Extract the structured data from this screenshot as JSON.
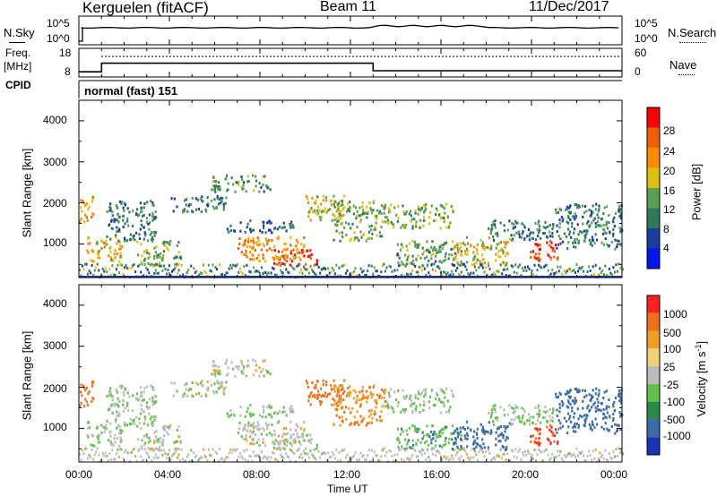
{
  "header": {
    "radar": "Kerguelen (fitACF)",
    "beam": "Beam 11",
    "date": "11/Dec/2017"
  },
  "noise_panel": {
    "left_label": "N.Sky",
    "right_label": "N.Search",
    "left_ticks": [
      "10^5",
      "10^0"
    ],
    "right_ticks": [
      "10^5",
      "10^0"
    ]
  },
  "freq_panel": {
    "left_label_1": "Freq.",
    "left_label_2": "[MHz]",
    "right_label": "Nave",
    "left_ticks": [
      "18",
      "8"
    ],
    "right_ticks": [
      "60",
      "0"
    ],
    "cpid_label": "CPID",
    "cpid_text": "normal (fast) 151",
    "freq_series_note": "frequency steps",
    "freq_steps": [
      {
        "start": 0.0,
        "end": 1.0,
        "value": 9.8
      },
      {
        "start": 1.0,
        "end": 13.0,
        "value": 12.8
      },
      {
        "start": 13.0,
        "end": 24.0,
        "value": 10.2
      }
    ],
    "nave_level": 43
  },
  "power_panel": {
    "ylabel": "Slant Range [km]",
    "yticks": [
      "4000",
      "3000",
      "2000",
      "1000"
    ],
    "colorbar_label": "Power [dB]",
    "colorbar_ticks": [
      "28",
      "24",
      "20",
      "16",
      "12",
      "8",
      "4"
    ],
    "colors": [
      "#0018f0",
      "#1a3ca0",
      "#2f7a5a",
      "#5aa050",
      "#ddc010",
      "#ff8a00",
      "#f06000",
      "#ff0000"
    ]
  },
  "velocity_panel": {
    "ylabel": "Slant Range [km]",
    "yticks": [
      "4000",
      "3000",
      "2000",
      "1000"
    ],
    "colorbar_label": "Velocity [m s",
    "colorbar_sup": "-1",
    "colorbar_label_end": "]",
    "colorbar_ticks": [
      "1000",
      "500",
      "100",
      "25",
      "-25",
      "-100",
      "-500",
      "-1000"
    ],
    "colors": [
      "#1832b8",
      "#3a6ca8",
      "#2a8a4a",
      "#62c24a",
      "#bcbcbc",
      "#f0d070",
      "#f0a020",
      "#f07018",
      "#ff2020"
    ]
  },
  "xaxis": {
    "label": "Time UT",
    "ticks": [
      "00:00",
      "04:00",
      "08:00",
      "12:00",
      "16:00",
      "20:00",
      "00:00"
    ]
  },
  "chart_data": {
    "type": "heatmap",
    "title": "Kerguelen (fitACF) Beam 11 11/Dec/2017",
    "xlabel": "Time UT",
    "ylabel": "Slant Range [km]",
    "xlim": [
      0,
      24
    ],
    "ylim": [
      180,
      4500
    ],
    "power_colorbar": {
      "label": "Power [dB]",
      "ticks": [
        4,
        8,
        12,
        16,
        20,
        24,
        28
      ]
    },
    "velocity_colorbar": {
      "label": "Velocity [m s-1]",
      "ticks": [
        -1000,
        -500,
        -100,
        -25,
        25,
        100,
        500,
        1000
      ]
    },
    "scatter_regions": [
      {
        "t0": 0.0,
        "t1": 0.6,
        "r0": 1550,
        "r1": 2200,
        "power": 20,
        "velocity": -300
      },
      {
        "t0": 0.3,
        "t1": 2.0,
        "r0": 600,
        "r1": 1200,
        "power": 20,
        "velocity": 25
      },
      {
        "t0": 1.2,
        "t1": 3.4,
        "r0": 1100,
        "r1": 2100,
        "power": 10,
        "velocity": 25
      },
      {
        "t0": 2.5,
        "t1": 4.5,
        "r0": 500,
        "r1": 1100,
        "power": 14,
        "velocity": 0
      },
      {
        "t0": 4.0,
        "t1": 6.5,
        "r0": 1800,
        "r1": 2200,
        "power": 10,
        "velocity": 0
      },
      {
        "t0": 5.8,
        "t1": 8.5,
        "r0": 2300,
        "r1": 2700,
        "power": 12,
        "velocity": 0
      },
      {
        "t0": 6.5,
        "t1": 9.5,
        "r0": 1300,
        "r1": 1600,
        "power": 8,
        "velocity": 25
      },
      {
        "t0": 7.0,
        "t1": 10.0,
        "r0": 600,
        "r1": 1200,
        "power": 22,
        "velocity": 0
      },
      {
        "t0": 8.5,
        "t1": 10.5,
        "r0": 500,
        "r1": 900,
        "power": 27,
        "velocity": 0
      },
      {
        "t0": 10.0,
        "t1": 11.8,
        "r0": 1600,
        "r1": 2200,
        "power": 18,
        "velocity": -300
      },
      {
        "t0": 11.2,
        "t1": 13.5,
        "r0": 1100,
        "r1": 2100,
        "power": 14,
        "velocity": -100
      },
      {
        "t0": 13.5,
        "t1": 16.5,
        "r0": 1400,
        "r1": 2000,
        "power": 14,
        "velocity": 25
      },
      {
        "t0": 14.0,
        "t1": 17.0,
        "r0": 500,
        "r1": 1100,
        "power": 12,
        "velocity": 80
      },
      {
        "t0": 16.5,
        "t1": 19.0,
        "r0": 500,
        "r1": 1200,
        "power": 18,
        "velocity": 150
      },
      {
        "t0": 18.0,
        "t1": 21.0,
        "r0": 1100,
        "r1": 1600,
        "power": 10,
        "velocity": 25
      },
      {
        "t0": 19.8,
        "t1": 21.2,
        "r0": 600,
        "r1": 1100,
        "power": 28,
        "velocity": -500
      },
      {
        "t0": 21.0,
        "t1": 24.0,
        "r0": 900,
        "r1": 2000,
        "power": 10,
        "velocity": 300
      }
    ]
  }
}
